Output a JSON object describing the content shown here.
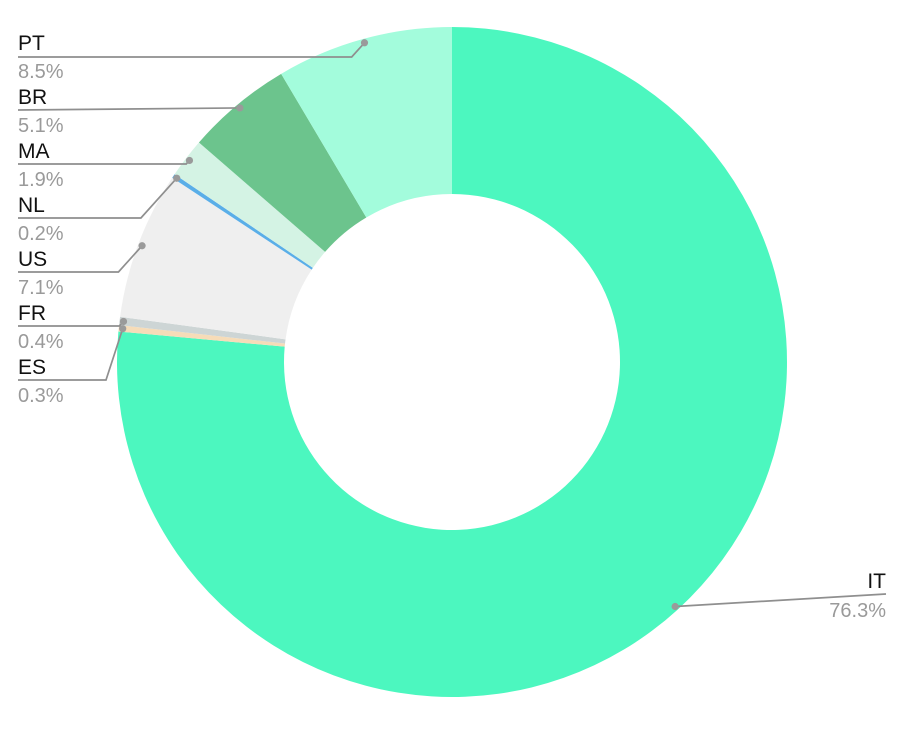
{
  "chart_data": {
    "type": "pie",
    "donut": true,
    "title": "",
    "slices": [
      {
        "label": "IT",
        "value": 76.3,
        "value_label": "76.3%",
        "color": "#4cf7bf"
      },
      {
        "label": "ES",
        "value": 0.3,
        "value_label": "0.3%",
        "color": "#f6dcb8"
      },
      {
        "label": "FR",
        "value": 0.4,
        "value_label": "0.4%",
        "color": "#cdd5d5"
      },
      {
        "label": "US",
        "value": 7.1,
        "value_label": "7.1%",
        "color": "#efefef"
      },
      {
        "label": "NL",
        "value": 0.2,
        "value_label": "0.2%",
        "color": "#5aaee8"
      },
      {
        "label": "MA",
        "value": 1.9,
        "value_label": "1.9%",
        "color": "#d4f3e4"
      },
      {
        "label": "BR",
        "value": 5.1,
        "value_label": "5.1%",
        "color": "#6cc48d"
      },
      {
        "label": "PT",
        "value": 8.5,
        "value_label": "8.5%",
        "color": "#a3fcdc"
      }
    ]
  }
}
